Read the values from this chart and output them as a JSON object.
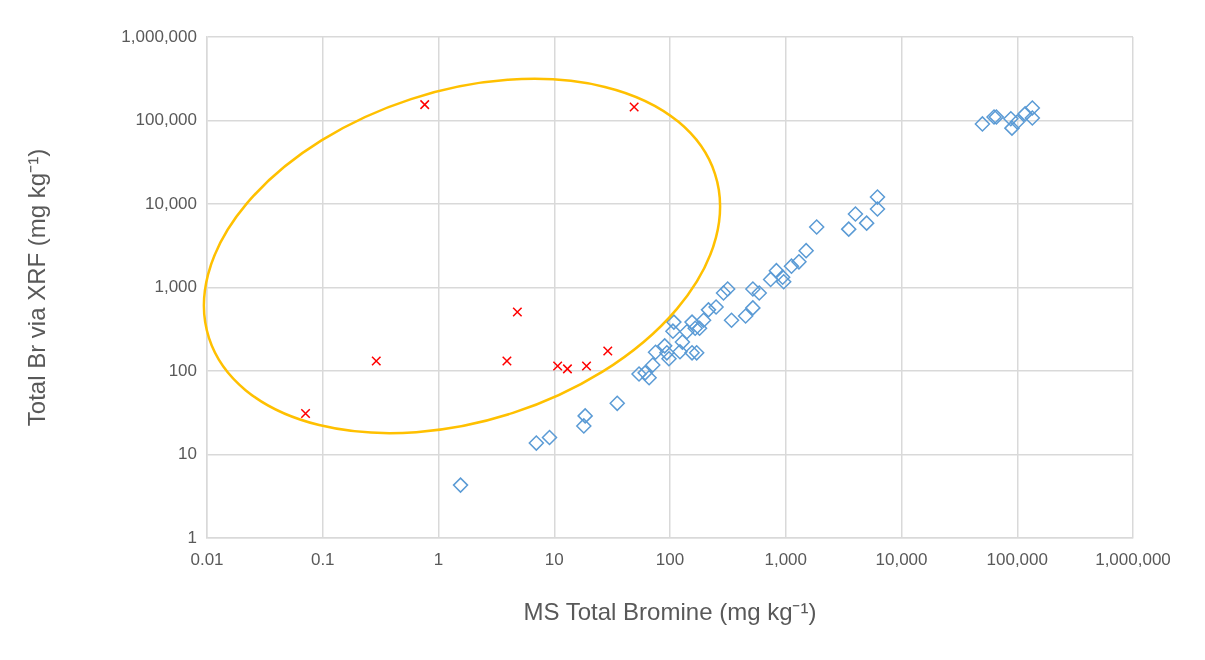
{
  "chart_data": {
    "type": "scatter",
    "xlabel": "MS Total Bromine (mg kg⁻¹)",
    "ylabel": "Total Br via XRF (mg kg⁻¹)",
    "log": "xy",
    "grid": true,
    "legend": false,
    "xlim": [
      0.01,
      1000000
    ],
    "xticks": [
      0.01,
      0.1,
      1,
      10,
      100,
      {
        "value": 1000,
        "label": "1,000"
      },
      {
        "value": 10000,
        "label": "10,000"
      },
      {
        "value": 100000,
        "label": "100,000"
      },
      {
        "value": 1000000,
        "label": "1,000,000"
      }
    ],
    "ylim": [
      1,
      1000000
    ],
    "yticks": [
      1,
      10,
      100,
      {
        "value": 1000,
        "label": "1,000"
      },
      {
        "value": 10000,
        "label": "10,000"
      },
      {
        "value": 100000,
        "label": "100,000"
      },
      {
        "value": 1000000,
        "label": "1,000,000"
      }
    ],
    "series": [
      {
        "color": "#5b9bd5",
        "marker": "diamond",
        "x": [
          1.55,
          7.0,
          9.1,
          18,
          18.5,
          35,
          54,
          61,
          66,
          71,
          75,
          90,
          94,
          98,
          108,
          106,
          122,
          128,
          140,
          155,
          155,
          170,
          165,
          180,
          195,
          215,
          250,
          290,
          315,
          340,
          450,
          520,
          520,
          590,
          740,
          830,
          940,
          960,
          1120,
          1300,
          1500,
          1850,
          3500,
          4000,
          5000,
          6200,
          6200,
          50000,
          63000,
          66000,
          88000,
          90000,
          100000,
          117000,
          135000,
          135000
        ],
        "values": [
          4.3,
          13.7,
          16,
          22,
          29,
          41,
          92,
          95,
          83,
          118,
          168,
          200,
          165,
          140,
          385,
          300,
          170,
          222,
          295,
          385,
          165,
          165,
          325,
          325,
          405,
          540,
          585,
          860,
          960,
          405,
          455,
          570,
          960,
          860,
          1250,
          1590,
          1330,
          1170,
          1800,
          2030,
          2760,
          5300,
          5000,
          7600,
          5900,
          12100,
          8700,
          91000,
          110000,
          110000,
          105000,
          81000,
          96000,
          120000,
          141000,
          107000
        ]
      },
      {
        "color": "#ff0000",
        "marker": "cross",
        "x": [
          0.071,
          0.29,
          0.76,
          3.9,
          4.8,
          10.7,
          13,
          19,
          29,
          49
        ],
        "values": [
          31,
          132,
          155000,
          132,
          510,
          115,
          106,
          115,
          174,
          145000
        ]
      }
    ]
  }
}
